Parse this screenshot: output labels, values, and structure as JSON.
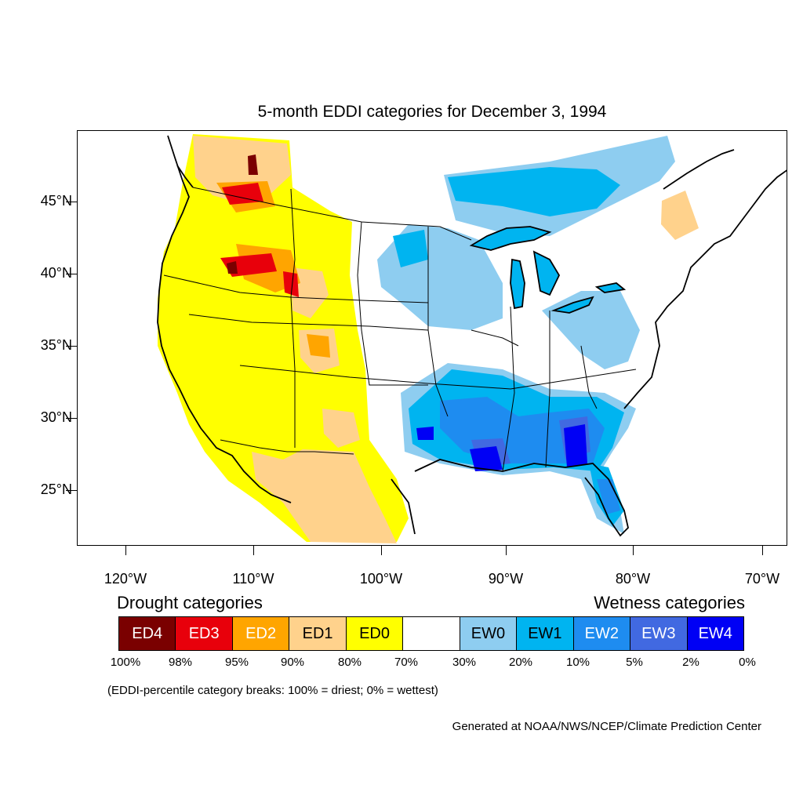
{
  "title": "5-month EDDI categories for December 3, 1994",
  "lat_labels": [
    "45°N",
    "40°N",
    "35°N",
    "30°N",
    "25°N"
  ],
  "lon_labels": [
    "120°W",
    "110°W",
    "100°W",
    "90°W",
    "80°W",
    "70°W"
  ],
  "legend": {
    "drought_heading": "Drought categories",
    "wetness_heading": "Wetness categories",
    "categories": [
      {
        "label": "ED4",
        "color": "#7a0000",
        "text_color": "#ffffff"
      },
      {
        "label": "ED3",
        "color": "#e8000b",
        "text_color": "#ffffff"
      },
      {
        "label": "ED2",
        "color": "#ffa500",
        "text_color": "#ffffff"
      },
      {
        "label": "ED1",
        "color": "#ffd28c",
        "text_color": "#000000"
      },
      {
        "label": "ED0",
        "color": "#ffff00",
        "text_color": "#000000"
      },
      {
        "label": "",
        "color": "#ffffff",
        "text_color": "#000000"
      },
      {
        "label": "EW0",
        "color": "#8ecdf0",
        "text_color": "#000000"
      },
      {
        "label": "EW1",
        "color": "#00b4f0",
        "text_color": "#000000"
      },
      {
        "label": "EW2",
        "color": "#1e8cf0",
        "text_color": "#ffffff"
      },
      {
        "label": "EW3",
        "color": "#4169e1",
        "text_color": "#ffffff"
      },
      {
        "label": "EW4",
        "color": "#0000f5",
        "text_color": "#ffffff"
      }
    ],
    "breaks": [
      "100%",
      "98%",
      "95%",
      "90%",
      "80%",
      "70%",
      "30%",
      "20%",
      "10%",
      "5%",
      "2%",
      "0%"
    ],
    "note": "(EDDI-percentile category breaks: 100% = driest; 0% = wettest)"
  },
  "credit": "Generated at NOAA/NWS/NCEP/Climate Prediction Center"
}
